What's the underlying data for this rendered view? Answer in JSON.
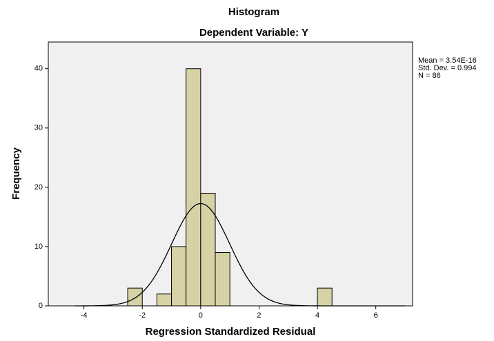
{
  "chart_data": {
    "type": "histogram",
    "title": "Histogram",
    "subtitle": "Dependent Variable: Y",
    "x_label": "Regression Standardized Residual",
    "y_label": "Frequency",
    "bins": [
      -2.5,
      -2,
      -1.5,
      -1,
      -0.5,
      0,
      0.5,
      1,
      1.5,
      2,
      2.5,
      3,
      3.5,
      4,
      4.5
    ],
    "counts": [
      3,
      0,
      2,
      10,
      40,
      19,
      9,
      0,
      0,
      0,
      0,
      0,
      0,
      3
    ],
    "color": "#d6d2a6",
    "plot_background": "#f0f0f0",
    "xlim": [
      -5.22,
      7.26
    ],
    "xticks": [
      -4,
      -2,
      0,
      2,
      4,
      6
    ],
    "ylim": [
      0,
      44.5
    ],
    "yticks": [
      0,
      10,
      20,
      30,
      40
    ],
    "stats": {
      "mean": {
        "value": 3.54e-16,
        "label": "Mean = 3.54E-16"
      },
      "std": {
        "value": 0.994,
        "label": "Std. Dev. = 0.994"
      },
      "n": {
        "value": 86,
        "label": "N = 86"
      }
    }
  }
}
